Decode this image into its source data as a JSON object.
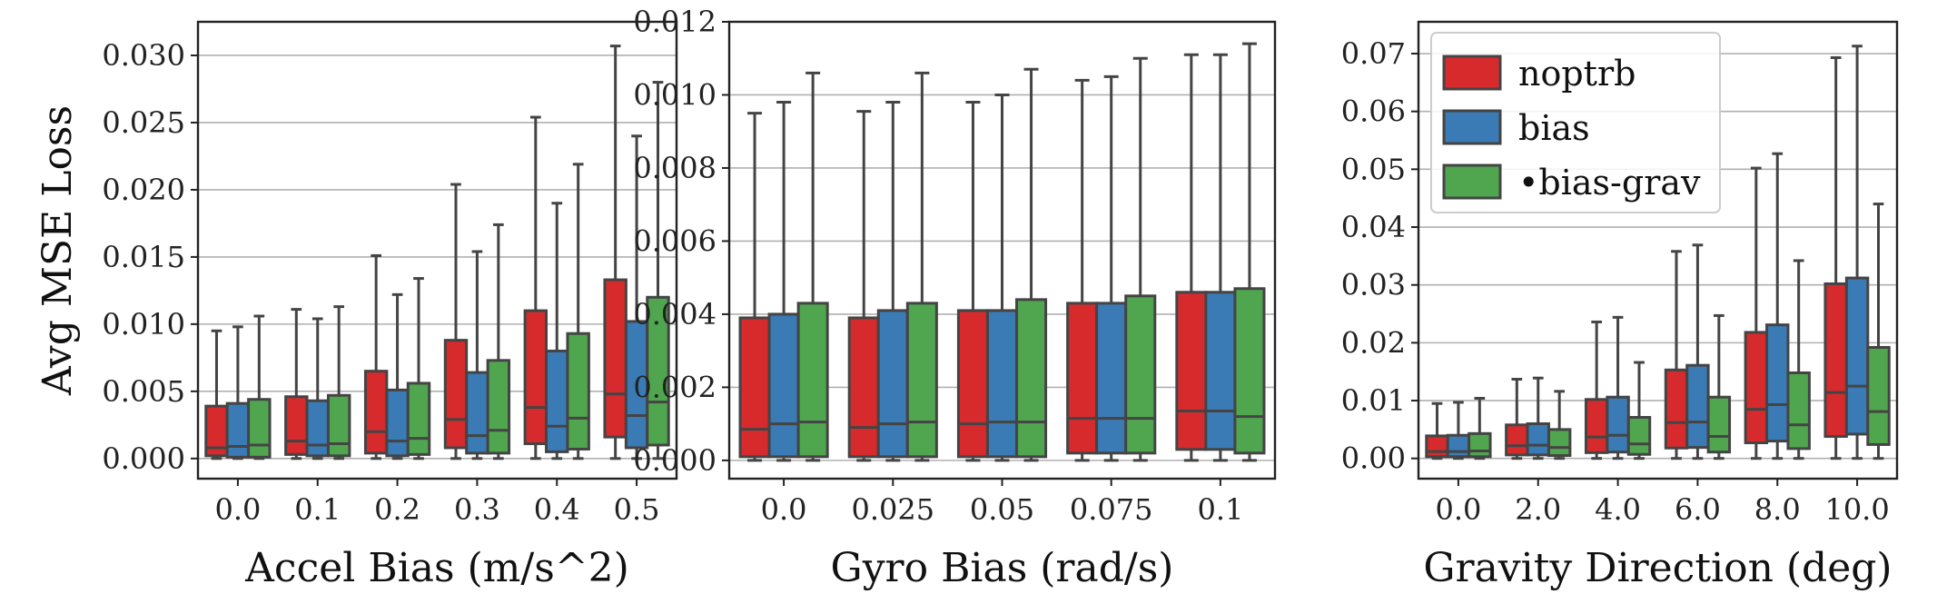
{
  "chart_data": [
    {
      "type": "box",
      "xlabel": "Accel Bias (m/s^2)",
      "ylabel": "Avg MSE Loss",
      "categories": [
        "0.0",
        "0.1",
        "0.2",
        "0.3",
        "0.4",
        "0.5"
      ],
      "ylim": [
        -0.0015,
        0.0325
      ],
      "yticks": [
        "0.000",
        "0.005",
        "0.010",
        "0.015",
        "0.020",
        "0.025",
        "0.030"
      ],
      "ytick_values": [
        0,
        0.005,
        0.01,
        0.015,
        0.02,
        0.025,
        0.03
      ],
      "grid": "horizontal",
      "series": [
        {
          "name": "noptrb",
          "color": "#d62a2d",
          "boxes": [
            {
              "min": 0,
              "q1": 0.0002,
              "median": 0.0008,
              "q3": 0.0039,
              "max": 0.0095
            },
            {
              "min": 0,
              "q1": 0.0003,
              "median": 0.0013,
              "q3": 0.0046,
              "max": 0.0111
            },
            {
              "min": 0,
              "q1": 0.0004,
              "median": 0.002,
              "q3": 0.0065,
              "max": 0.0151
            },
            {
              "min": 0,
              "q1": 0.0008,
              "median": 0.0029,
              "q3": 0.0088,
              "max": 0.0204
            },
            {
              "min": 0,
              "q1": 0.0011,
              "median": 0.0038,
              "q3": 0.011,
              "max": 0.0254
            },
            {
              "min": 0,
              "q1": 0.0016,
              "median": 0.0048,
              "q3": 0.0133,
              "max": 0.0307
            }
          ]
        },
        {
          "name": "bias",
          "color": "#3a7ab5",
          "boxes": [
            {
              "min": 0,
              "q1": 0.0001,
              "median": 0.0009,
              "q3": 0.0041,
              "max": 0.0098
            },
            {
              "min": 0,
              "q1": 0.0002,
              "median": 0.001,
              "q3": 0.0043,
              "max": 0.0104
            },
            {
              "min": 0,
              "q1": 0.0002,
              "median": 0.0013,
              "q3": 0.0051,
              "max": 0.0122
            },
            {
              "min": 0,
              "q1": 0.0004,
              "median": 0.0017,
              "q3": 0.0064,
              "max": 0.0154
            },
            {
              "min": 0,
              "q1": 0.0005,
              "median": 0.0024,
              "q3": 0.008,
              "max": 0.019
            },
            {
              "min": 0,
              "q1": 0.0008,
              "median": 0.0032,
              "q3": 0.0102,
              "max": 0.024
            }
          ]
        },
        {
          "name": "bias-grav",
          "color": "#4fa64f",
          "boxes": [
            {
              "min": 0,
              "q1": 0.0001,
              "median": 0.001,
              "q3": 0.0044,
              "max": 0.0106
            },
            {
              "min": 0,
              "q1": 0.0002,
              "median": 0.0011,
              "q3": 0.0047,
              "max": 0.0113
            },
            {
              "min": 0,
              "q1": 0.0003,
              "median": 0.0015,
              "q3": 0.0056,
              "max": 0.0134
            },
            {
              "min": 0,
              "q1": 0.0004,
              "median": 0.0021,
              "q3": 0.0073,
              "max": 0.0174
            },
            {
              "min": 0,
              "q1": 0.0007,
              "median": 0.003,
              "q3": 0.0093,
              "max": 0.0219
            },
            {
              "min": 0,
              "q1": 0.001,
              "median": 0.0042,
              "q3": 0.012,
              "max": 0.028
            }
          ]
        }
      ]
    },
    {
      "type": "box",
      "xlabel": "Gyro Bias (rad/s)",
      "ylabel": "",
      "categories": [
        "0.0",
        "0.025",
        "0.05",
        "0.075",
        "0.1"
      ],
      "ylim": [
        -0.0005,
        0.012
      ],
      "yticks": [
        "0.000",
        "0.002",
        "0.004",
        "0.006",
        "0.008",
        "0.010",
        "0.012"
      ],
      "ytick_values": [
        0,
        0.002,
        0.004,
        0.006,
        0.008,
        0.01,
        0.012
      ],
      "grid": "horizontal",
      "series": [
        {
          "name": "noptrb",
          "color": "#d62a2d",
          "boxes": [
            {
              "min": 0,
              "q1": 0.0001,
              "median": 0.00085,
              "q3": 0.0039,
              "max": 0.0095
            },
            {
              "min": 0,
              "q1": 0.0001,
              "median": 0.0009,
              "q3": 0.0039,
              "max": 0.00955
            },
            {
              "min": 0,
              "q1": 0.0001,
              "median": 0.001,
              "q3": 0.0041,
              "max": 0.0098
            },
            {
              "min": 0,
              "q1": 0.0002,
              "median": 0.00115,
              "q3": 0.0043,
              "max": 0.0104
            },
            {
              "min": 0,
              "q1": 0.0003,
              "median": 0.00135,
              "q3": 0.0046,
              "max": 0.0111
            }
          ]
        },
        {
          "name": "bias",
          "color": "#3a7ab5",
          "boxes": [
            {
              "min": 0,
              "q1": 0.0001,
              "median": 0.001,
              "q3": 0.004,
              "max": 0.0098
            },
            {
              "min": 0,
              "q1": 0.0001,
              "median": 0.001,
              "q3": 0.0041,
              "max": 0.0098
            },
            {
              "min": 0,
              "q1": 0.0001,
              "median": 0.00105,
              "q3": 0.0041,
              "max": 0.01
            },
            {
              "min": 0,
              "q1": 0.0002,
              "median": 0.00115,
              "q3": 0.0043,
              "max": 0.0105
            },
            {
              "min": 0,
              "q1": 0.0003,
              "median": 0.00135,
              "q3": 0.0046,
              "max": 0.0111
            }
          ]
        },
        {
          "name": "bias-grav",
          "color": "#4fa64f",
          "boxes": [
            {
              "min": 0,
              "q1": 0.0001,
              "median": 0.00105,
              "q3": 0.0043,
              "max": 0.0106
            },
            {
              "min": 0,
              "q1": 0.0001,
              "median": 0.00105,
              "q3": 0.0043,
              "max": 0.0106
            },
            {
              "min": 0,
              "q1": 0.0001,
              "median": 0.00105,
              "q3": 0.0044,
              "max": 0.0107
            },
            {
              "min": 0,
              "q1": 0.0002,
              "median": 0.00115,
              "q3": 0.0045,
              "max": 0.011
            },
            {
              "min": 0,
              "q1": 0.0002,
              "median": 0.0012,
              "q3": 0.0047,
              "max": 0.0114
            }
          ]
        }
      ]
    },
    {
      "type": "box",
      "xlabel": "Gravity Direction (deg)",
      "ylabel": "",
      "categories": [
        "0.0",
        "2.0",
        "4.0",
        "6.0",
        "8.0",
        "10.0"
      ],
      "ylim": [
        -0.0035,
        0.0755
      ],
      "yticks": [
        "0.00",
        "0.01",
        "0.02",
        "0.03",
        "0.04",
        "0.05",
        "0.06",
        "0.07"
      ],
      "ytick_values": [
        0,
        0.01,
        0.02,
        0.03,
        0.04,
        0.05,
        0.06,
        0.07
      ],
      "grid": "horizontal",
      "legend": {
        "position": "top-left",
        "entries": [
          "noptrb",
          "bias",
          "•bias-grav"
        ]
      },
      "series": [
        {
          "name": "noptrb",
          "color": "#d62a2d",
          "boxes": [
            {
              "min": 0,
              "q1": 0.0003,
              "median": 0.0012,
              "q3": 0.0039,
              "max": 0.0095
            },
            {
              "min": 0,
              "q1": 0.0006,
              "median": 0.0022,
              "q3": 0.0058,
              "max": 0.0137
            },
            {
              "min": 0,
              "q1": 0.001,
              "median": 0.0037,
              "q3": 0.0102,
              "max": 0.0236
            },
            {
              "min": 0,
              "q1": 0.0018,
              "median": 0.0062,
              "q3": 0.0153,
              "max": 0.0358
            },
            {
              "min": 0,
              "q1": 0.0027,
              "median": 0.0085,
              "q3": 0.0218,
              "max": 0.0502
            },
            {
              "min": 0,
              "q1": 0.0038,
              "median": 0.0114,
              "q3": 0.0302,
              "max": 0.0693
            }
          ]
        },
        {
          "name": "bias",
          "color": "#3a7ab5",
          "boxes": [
            {
              "min": 0,
              "q1": 0.0003,
              "median": 0.0012,
              "q3": 0.004,
              "max": 0.0097
            },
            {
              "min": 0,
              "q1": 0.0006,
              "median": 0.0023,
              "q3": 0.006,
              "max": 0.0139
            },
            {
              "min": 0,
              "q1": 0.0011,
              "median": 0.004,
              "q3": 0.0106,
              "max": 0.0244
            },
            {
              "min": 0,
              "q1": 0.0019,
              "median": 0.0063,
              "q3": 0.0161,
              "max": 0.0369
            },
            {
              "min": 0,
              "q1": 0.003,
              "median": 0.0093,
              "q3": 0.0231,
              "max": 0.0527
            },
            {
              "min": 0,
              "q1": 0.0042,
              "median": 0.0125,
              "q3": 0.0312,
              "max": 0.0713
            }
          ]
        },
        {
          "name": "bias-grav",
          "color": "#4fa64f",
          "boxes": [
            {
              "min": 0,
              "q1": 0.0003,
              "median": 0.0013,
              "q3": 0.0043,
              "max": 0.0104
            },
            {
              "min": 0,
              "q1": 0.0005,
              "median": 0.0019,
              "q3": 0.005,
              "max": 0.0116
            },
            {
              "min": 0,
              "q1": 0.0007,
              "median": 0.0025,
              "q3": 0.0071,
              "max": 0.0166
            },
            {
              "min": 0,
              "q1": 0.0011,
              "median": 0.0038,
              "q3": 0.0106,
              "max": 0.0247
            },
            {
              "min": 0,
              "q1": 0.0017,
              "median": 0.0058,
              "q3": 0.0148,
              "max": 0.0342
            },
            {
              "min": 0,
              "q1": 0.0024,
              "median": 0.0081,
              "q3": 0.0192,
              "max": 0.044
            }
          ]
        }
      ]
    }
  ]
}
